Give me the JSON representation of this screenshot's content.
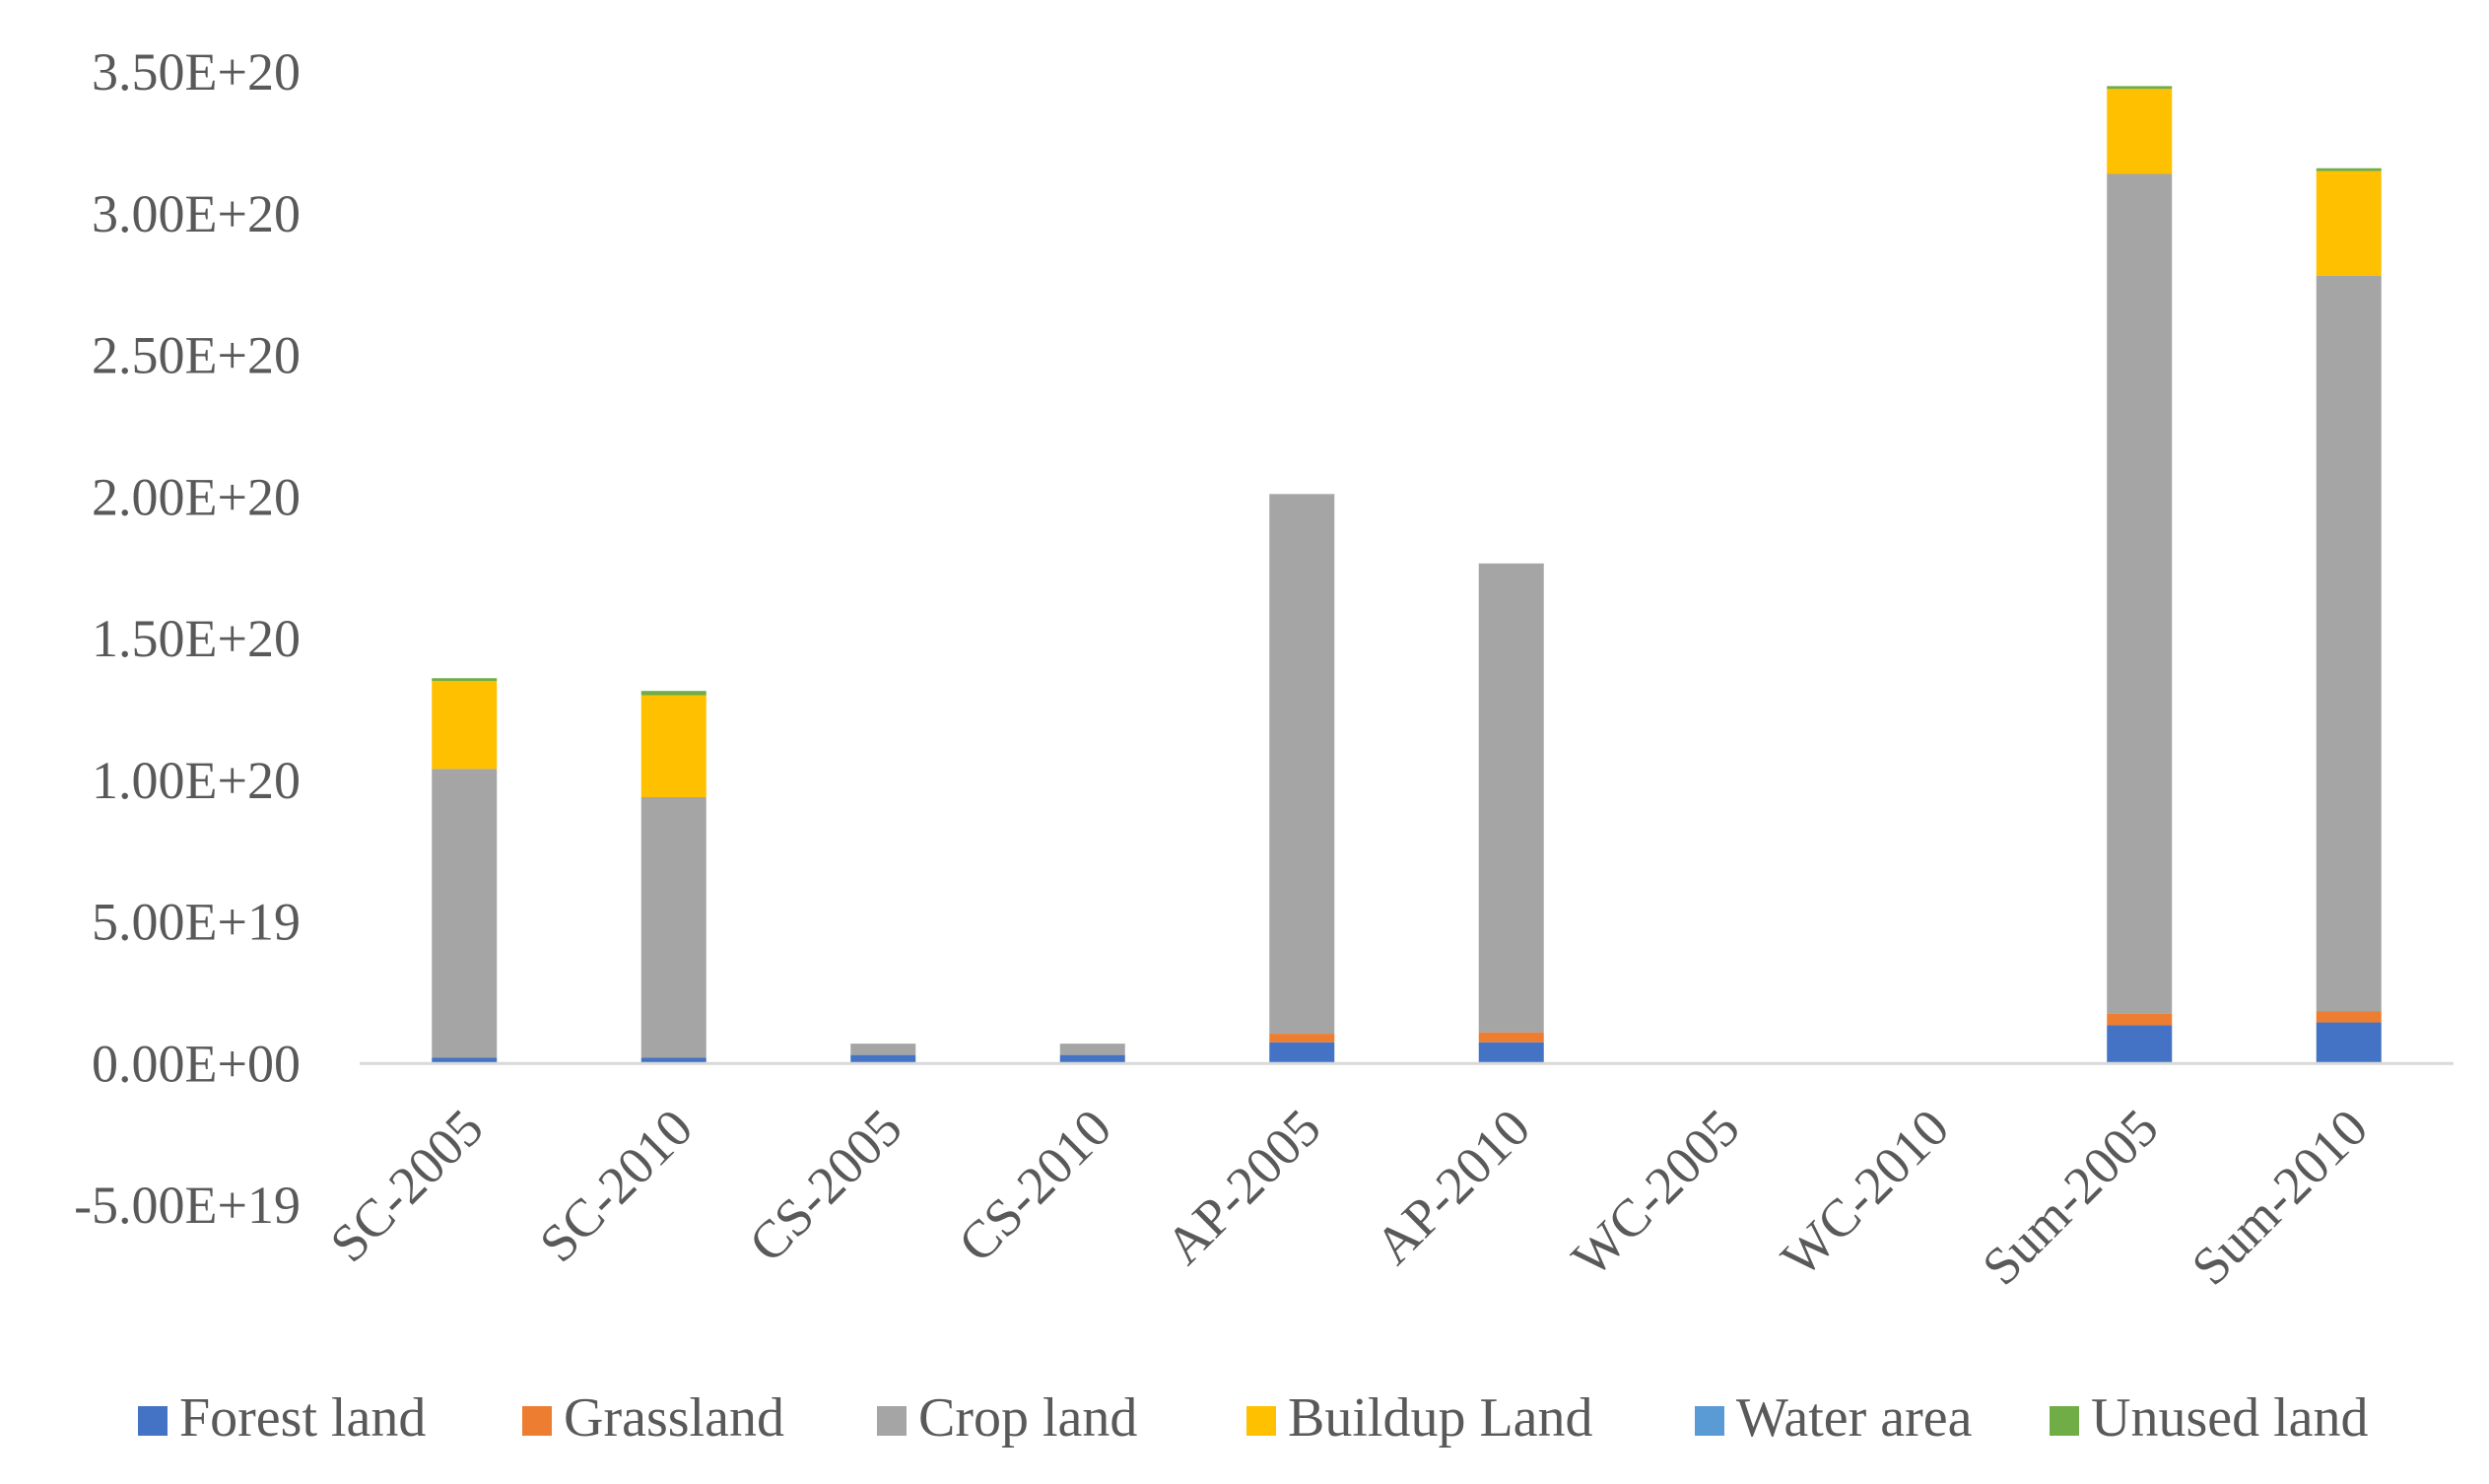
{
  "chart_data": {
    "type": "bar",
    "stacked": true,
    "title": "",
    "xlabel": "",
    "ylabel": "",
    "ylim": [
      -5e+19,
      3.5e+20
    ],
    "yticks": [
      -5e+19,
      0,
      5e+19,
      1e+20,
      1.5e+20,
      2e+20,
      2.5e+20,
      3e+20,
      3.5e+20
    ],
    "ytick_labels": [
      "-5.00E+19",
      "0.00E+00",
      "5.00E+19",
      "1.00E+20",
      "1.50E+20",
      "2.00E+20",
      "2.50E+20",
      "3.00E+20",
      "3.50E+20"
    ],
    "grid": false,
    "legend_position": "bottom",
    "categories": [
      "SC-2005",
      "SC-2010",
      "CS-2005",
      "CS-2010",
      "AP-2005",
      "AP-2010",
      "WC-2005",
      "WC-2010",
      "Sum-2005",
      "Sum-2010"
    ],
    "series": [
      {
        "name": "Forest land",
        "color": "#4472C4",
        "values": [
          2e+18,
          2e+18,
          3e+18,
          3e+18,
          7.5e+18,
          7.5e+18,
          0,
          0,
          1.35e+19,
          1.45e+19
        ]
      },
      {
        "name": "Grassland",
        "color": "#ED7D31",
        "values": [
          0,
          0,
          0,
          0,
          3e+18,
          3.5e+18,
          0,
          0,
          4e+18,
          4e+18
        ]
      },
      {
        "name": "Crop land",
        "color": "#A5A5A5",
        "values": [
          1.02e+20,
          9.2e+19,
          4e+18,
          4e+18,
          1.905e+20,
          1.655e+20,
          0,
          0,
          2.965e+20,
          2.595e+20
        ]
      },
      {
        "name": "Buildup Land",
        "color": "#FFC000",
        "values": [
          3.1e+19,
          3.6e+19,
          0,
          0,
          0,
          0,
          0,
          0,
          3e+19,
          3.7e+19
        ]
      },
      {
        "name": "Water area",
        "color": "#5B9BD5",
        "values": [
          0,
          0,
          0,
          0,
          0,
          0,
          0,
          0,
          0,
          0
        ]
      },
      {
        "name": "Unused land",
        "color": "#70AD47",
        "values": [
          1e+18,
          1.5e+18,
          0,
          0,
          0,
          0,
          0,
          0,
          1e+18,
          1e+18
        ]
      }
    ]
  }
}
